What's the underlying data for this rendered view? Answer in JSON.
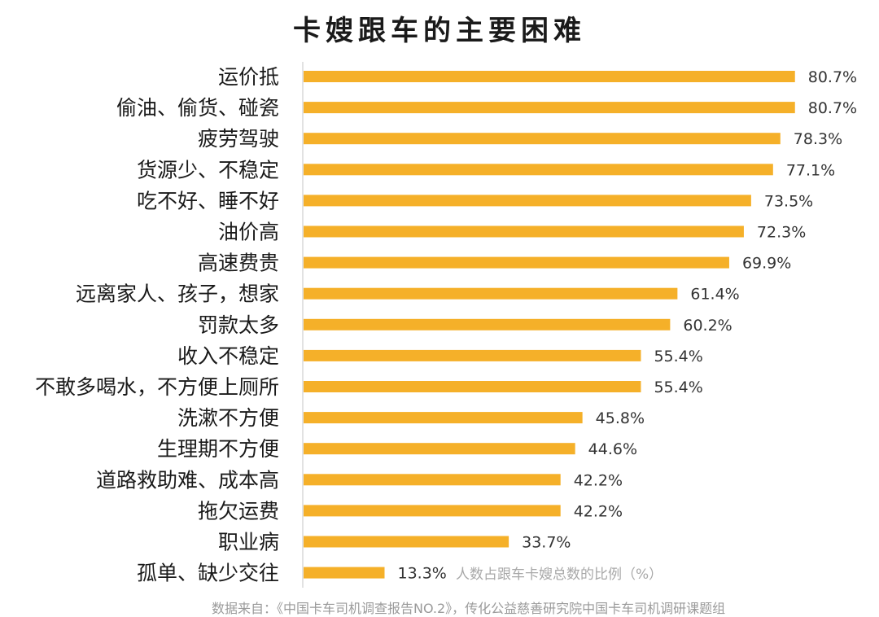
{
  "chart_data": {
    "type": "bar",
    "orientation": "horizontal",
    "title": "卡嫂跟车的主要困难",
    "categories": [
      "运价抵",
      "偷油、偷货、碰瓷",
      "疲劳驾驶",
      "货源少、不稳定",
      "吃不好、睡不好",
      "油价高",
      "高速费贵",
      "远离家人、孩子，想家",
      "罚款太多",
      "收入不稳定",
      "不敢多喝水，不方便上厕所",
      "洗漱不方便",
      "生理期不方便",
      "道路救助难、成本高",
      "拖欠运费",
      "职业病",
      "孤单、缺少交往"
    ],
    "values": [
      80.7,
      80.7,
      78.3,
      77.1,
      73.5,
      72.3,
      69.9,
      61.4,
      60.2,
      55.4,
      55.4,
      45.8,
      44.6,
      42.2,
      42.2,
      33.7,
      13.3
    ],
    "value_labels": [
      "80.7%",
      "80.7%",
      "78.3%",
      "77.1%",
      "73.5%",
      "72.3%",
      "69.9%",
      "61.4%",
      "60.2%",
      "55.4%",
      "55.4%",
      "45.8%",
      "44.6%",
      "42.2%",
      "42.2%",
      "33.7%",
      "13.3%"
    ],
    "annotation": "人数占跟车卡嫂总数的比例（%）",
    "xlim": [
      0,
      81
    ],
    "grid": false,
    "bar_color": "#F5B029"
  },
  "footer": {
    "source": "数据来自：《中国卡车司机调查报告NO.2》，传化公益慈善研究院中国卡车司机调研课题组"
  }
}
